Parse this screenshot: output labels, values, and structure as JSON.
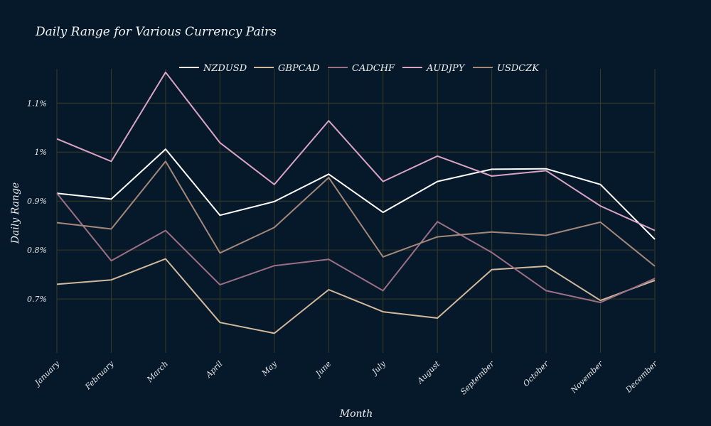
{
  "chart_data": {
    "type": "line",
    "title": "Daily Range for Various Currency Pairs",
    "xlabel": "Month",
    "ylabel": "Daily Range",
    "categories": [
      "January",
      "February",
      "March",
      "April",
      "May",
      "June",
      "July",
      "August",
      "September",
      "October",
      "November",
      "December"
    ],
    "y_ticks": [
      0.007,
      0.008,
      0.009,
      0.01,
      0.011
    ],
    "y_tick_labels": [
      "0.7%",
      "0.8%",
      "0.9%",
      "1%",
      "1.1%"
    ],
    "ylim": [
      0.0059,
      0.0117
    ],
    "grid": true,
    "legend_position": "top-center",
    "series": [
      {
        "name": "NZDUSD",
        "color": "#ffffff",
        "values": [
          0.00916,
          0.00904,
          0.01006,
          0.00871,
          0.00899,
          0.00955,
          0.00877,
          0.0094,
          0.00965,
          0.00966,
          0.00934,
          0.00822
        ]
      },
      {
        "name": "GBPCAD",
        "color": "#d2b99c",
        "values": [
          0.0073,
          0.00739,
          0.00782,
          0.00652,
          0.0063,
          0.00719,
          0.00674,
          0.00661,
          0.0076,
          0.00767,
          0.00697,
          0.00738
        ]
      },
      {
        "name": "CADCHF",
        "color": "#9b6f85",
        "values": [
          0.00916,
          0.00778,
          0.0084,
          0.00729,
          0.00768,
          0.00781,
          0.00717,
          0.00858,
          0.00795,
          0.00717,
          0.00693,
          0.00742
        ]
      },
      {
        "name": "AUDJPY",
        "color": "#d9a3c4",
        "values": [
          0.01027,
          0.00981,
          0.01163,
          0.01019,
          0.00934,
          0.01064,
          0.0094,
          0.00992,
          0.00951,
          0.00962,
          0.0089,
          0.0084
        ]
      },
      {
        "name": "USDCZK",
        "color": "#a3887a",
        "values": [
          0.00856,
          0.00843,
          0.00981,
          0.00794,
          0.00846,
          0.00948,
          0.00786,
          0.00827,
          0.00837,
          0.0083,
          0.00857,
          0.00767
        ]
      }
    ]
  }
}
